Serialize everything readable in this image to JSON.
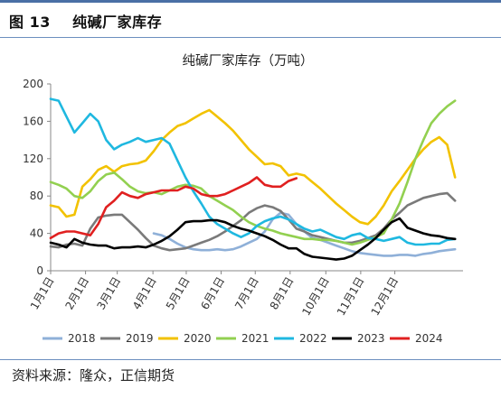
{
  "header": {
    "figure_label": "图 13",
    "figure_title": "纯碱厂家库存"
  },
  "footer": {
    "source": "资料来源：隆众，正信期货"
  },
  "chart_data": {
    "type": "line",
    "title": "纯碱厂家库存（万吨）",
    "xlabel": "",
    "ylabel": "",
    "ylim": [
      0,
      200
    ],
    "yticks": [
      0,
      40,
      80,
      120,
      160,
      200
    ],
    "xlim": [
      1,
      53
    ],
    "x_tick_labels": [
      {
        "week": 1,
        "label": "1月1日"
      },
      {
        "week": 5.4,
        "label": "2月1日"
      },
      {
        "week": 9.4,
        "label": "3月1日"
      },
      {
        "week": 13.9,
        "label": "4月1日"
      },
      {
        "week": 18.1,
        "label": "5月1日"
      },
      {
        "week": 22.5,
        "label": "6月1日"
      },
      {
        "week": 26.8,
        "label": "7月1日"
      },
      {
        "week": 31.2,
        "label": "8月1日"
      },
      {
        "week": 35.7,
        "label": "10月1日"
      },
      {
        "week": 40.1,
        "label": "11月1日"
      },
      {
        "week": 44.4,
        "label": "12月1日"
      }
    ],
    "grid": false,
    "legend_position": "bottom",
    "series": [
      {
        "name": "2018",
        "color": "#8fb0d8",
        "x": [
          14,
          15,
          16,
          17,
          18,
          19,
          20,
          21,
          22,
          23,
          24,
          25,
          26,
          27,
          28,
          29,
          30,
          31,
          32,
          33,
          34,
          35,
          36,
          37,
          38,
          39,
          40,
          41,
          42,
          43,
          44,
          45,
          46,
          47,
          48,
          49,
          50,
          51,
          52
        ],
        "y": [
          40,
          38,
          34,
          29,
          25,
          23,
          22,
          22,
          23,
          22,
          23,
          26,
          30,
          34,
          42,
          55,
          62,
          60,
          50,
          42,
          35,
          33,
          30,
          27,
          24,
          21,
          19,
          18,
          17,
          16,
          16,
          17,
          17,
          16,
          18,
          19,
          21,
          22,
          23
        ]
      },
      {
        "name": "2019",
        "color": "#7a7a7a",
        "x": [
          1,
          2,
          3,
          4,
          5,
          6,
          7,
          8,
          9,
          10,
          11,
          12,
          13,
          14,
          15,
          16,
          17,
          18,
          19,
          20,
          21,
          22,
          23,
          24,
          25,
          26,
          27,
          28,
          29,
          30,
          31,
          32,
          33,
          34,
          35,
          36,
          37,
          38,
          39,
          40,
          41,
          42,
          43,
          44,
          45,
          46,
          47,
          48,
          49,
          50,
          51,
          52
        ],
        "y": [
          26,
          25,
          28,
          29,
          27,
          45,
          57,
          59,
          60,
          60,
          52,
          44,
          35,
          27,
          24,
          22,
          23,
          24,
          27,
          30,
          33,
          37,
          42,
          48,
          54,
          62,
          67,
          70,
          68,
          64,
          55,
          45,
          42,
          38,
          36,
          34,
          32,
          30,
          30,
          32,
          35,
          38,
          45,
          55,
          62,
          70,
          74,
          78,
          80,
          82,
          83,
          75
        ]
      },
      {
        "name": "2020",
        "color": "#f2c200",
        "x": [
          1,
          2,
          3,
          4,
          5,
          6,
          7,
          8,
          9,
          10,
          11,
          12,
          13,
          14,
          15,
          16,
          17,
          18,
          19,
          20,
          21,
          22,
          23,
          24,
          25,
          26,
          27,
          28,
          29,
          30,
          31,
          32,
          33,
          34,
          35,
          36,
          37,
          38,
          39,
          40,
          41,
          42,
          43,
          44,
          45,
          46,
          47,
          48,
          49,
          50,
          51,
          52
        ],
        "y": [
          70,
          68,
          58,
          60,
          90,
          98,
          108,
          112,
          106,
          112,
          114,
          115,
          118,
          128,
          140,
          148,
          155,
          158,
          163,
          168,
          172,
          165,
          158,
          150,
          140,
          130,
          122,
          114,
          115,
          112,
          102,
          104,
          102,
          95,
          88,
          80,
          72,
          65,
          58,
          52,
          50,
          58,
          70,
          85,
          96,
          108,
          120,
          130,
          138,
          143,
          135,
          100
        ]
      },
      {
        "name": "2021",
        "color": "#92d050",
        "x": [
          1,
          2,
          3,
          4,
          5,
          6,
          7,
          8,
          9,
          10,
          11,
          12,
          13,
          14,
          15,
          16,
          17,
          18,
          19,
          20,
          21,
          22,
          23,
          24,
          25,
          26,
          27,
          28,
          29,
          30,
          31,
          32,
          33,
          34,
          35,
          36,
          37,
          38,
          39,
          40,
          41,
          42,
          43,
          44,
          45,
          46,
          47,
          48,
          49,
          50,
          51,
          52
        ],
        "y": [
          95,
          92,
          88,
          80,
          78,
          85,
          96,
          103,
          105,
          98,
          90,
          85,
          83,
          84,
          82,
          86,
          90,
          92,
          91,
          88,
          80,
          75,
          70,
          65,
          58,
          52,
          48,
          45,
          43,
          40,
          38,
          36,
          34,
          34,
          33,
          33,
          32,
          30,
          28,
          30,
          33,
          36,
          40,
          55,
          72,
          95,
          120,
          140,
          158,
          168,
          176,
          182
        ]
      },
      {
        "name": "2022",
        "color": "#1fb8e0",
        "x": [
          1,
          2,
          3,
          4,
          5,
          6,
          7,
          8,
          9,
          10,
          11,
          12,
          13,
          14,
          15,
          16,
          17,
          18,
          19,
          20,
          21,
          22,
          23,
          24,
          25,
          26,
          27,
          28,
          29,
          30,
          31,
          32,
          33,
          34,
          35,
          36,
          37,
          38,
          39,
          40,
          41,
          42,
          43,
          44,
          45,
          46,
          47,
          48,
          49,
          50,
          51,
          52
        ],
        "y": [
          184,
          182,
          165,
          148,
          158,
          168,
          160,
          140,
          130,
          135,
          138,
          142,
          138,
          140,
          142,
          136,
          118,
          100,
          85,
          72,
          58,
          50,
          45,
          40,
          36,
          40,
          48,
          53,
          56,
          58,
          55,
          50,
          45,
          42,
          44,
          40,
          36,
          34,
          38,
          40,
          35,
          34,
          32,
          34,
          36,
          30,
          28,
          28,
          29,
          29,
          33,
          34
        ]
      },
      {
        "name": "2023",
        "color": "#000000",
        "x": [
          1,
          2,
          3,
          4,
          5,
          6,
          7,
          8,
          9,
          10,
          11,
          12,
          13,
          14,
          15,
          16,
          17,
          18,
          19,
          20,
          21,
          22,
          23,
          24,
          25,
          26,
          27,
          28,
          29,
          30,
          31,
          32,
          33,
          34,
          35,
          36,
          37,
          38,
          39,
          40,
          41,
          42,
          43,
          44,
          45,
          46,
          47,
          48,
          49,
          50,
          51,
          52
        ],
        "y": [
          30,
          28,
          25,
          34,
          30,
          28,
          27,
          27,
          24,
          25,
          25,
          26,
          25,
          28,
          32,
          37,
          44,
          52,
          53,
          53,
          54,
          54,
          52,
          48,
          45,
          43,
          40,
          37,
          33,
          28,
          24,
          24,
          18,
          15,
          14,
          13,
          12,
          13,
          16,
          22,
          28,
          35,
          44,
          52,
          56,
          46,
          43,
          40,
          38,
          37,
          35,
          34
        ]
      },
      {
        "name": "2024",
        "color": "#e02020",
        "x": [
          1,
          2,
          3,
          4,
          5,
          6,
          7,
          8,
          9,
          10,
          11,
          12,
          13,
          14,
          15,
          16,
          17,
          18,
          19,
          20,
          21,
          22,
          23,
          24,
          25,
          26,
          27,
          28,
          29,
          30,
          31,
          32
        ],
        "y": [
          35,
          40,
          42,
          42,
          40,
          38,
          50,
          68,
          75,
          84,
          80,
          78,
          82,
          84,
          86,
          86,
          86,
          90,
          88,
          82,
          80,
          80,
          82,
          86,
          90,
          94,
          100,
          92,
          90,
          90,
          96,
          99
        ]
      }
    ]
  }
}
